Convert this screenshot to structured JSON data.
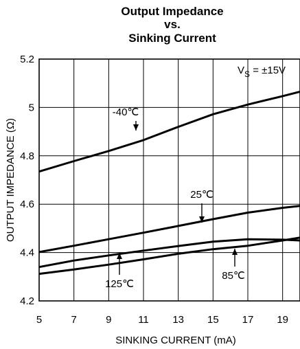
{
  "chart_data": {
    "type": "line",
    "title": [
      "Output Impedance",
      "vs.",
      "Sinking Current"
    ],
    "xlabel": "SINKING CURRENT (mA)",
    "ylabel": "OUTPUT IMPEDANCE (Ω)",
    "xlim": [
      5,
      20
    ],
    "ylim": [
      4.2,
      5.2
    ],
    "x_ticks": [
      "5",
      "7",
      "9",
      "11",
      "13",
      "15",
      "17",
      "19"
    ],
    "y_ticks": [
      "4.2",
      "4.4",
      "4.6",
      "4.8",
      "5",
      "5.2"
    ],
    "grid": true,
    "annotation": {
      "prefix": "V",
      "subscript": "S",
      "value": " = ±15V"
    },
    "series": [
      {
        "name": "-40℃",
        "x": [
          5,
          7,
          9,
          11,
          13,
          15,
          17,
          19,
          20
        ],
        "y": [
          4.735,
          4.778,
          4.82,
          4.865,
          4.92,
          4.972,
          5.012,
          5.047,
          5.065
        ]
      },
      {
        "name": "25℃",
        "x": [
          5,
          7,
          9,
          11,
          13,
          15,
          17,
          19,
          20
        ],
        "y": [
          4.402,
          4.428,
          4.455,
          4.482,
          4.51,
          4.538,
          4.565,
          4.585,
          4.593
        ]
      },
      {
        "name": "125℃",
        "x": [
          5,
          7,
          9,
          11,
          13,
          15,
          17,
          19,
          20
        ],
        "y": [
          4.34,
          4.367,
          4.388,
          4.408,
          4.427,
          4.445,
          4.455,
          4.453,
          4.45
        ]
      },
      {
        "name": "85℃",
        "x": [
          5,
          7,
          9,
          11,
          13,
          15,
          17,
          19,
          20
        ],
        "y": [
          4.312,
          4.33,
          4.35,
          4.372,
          4.395,
          4.414,
          4.428,
          4.45,
          4.462
        ]
      }
    ],
    "labels": [
      {
        "series": "-40℃",
        "text": "-40℃"
      },
      {
        "series": "25℃",
        "text": "25℃"
      },
      {
        "series": "125℃",
        "text": "125℃"
      },
      {
        "series": "85℃",
        "text": "85℃"
      }
    ]
  }
}
